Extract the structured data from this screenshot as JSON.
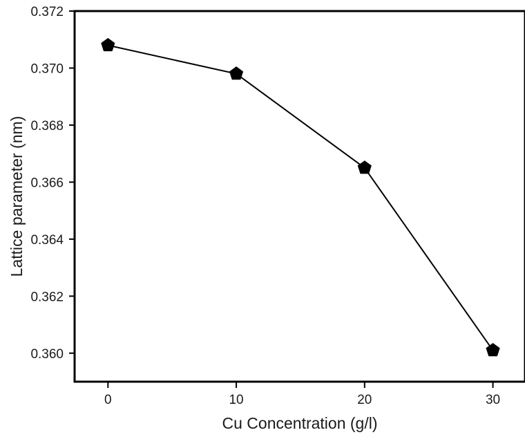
{
  "chart_data": {
    "type": "line",
    "title": "",
    "xlabel": "Cu Concentration (g/l)",
    "ylabel": "Lattice parameter (nm)",
    "x": [
      0,
      10,
      20,
      30
    ],
    "series": [
      {
        "values": [
          0.3708,
          0.3698,
          0.3665,
          0.3601
        ],
        "color": "#000000",
        "marker": "pentagon"
      }
    ],
    "xlim": [
      -2.6,
      32.5
    ],
    "ylim": [
      0.359,
      0.372
    ],
    "xticks": [
      0,
      10,
      20,
      30
    ],
    "xtick_labels": [
      "0",
      "10",
      "20",
      "30"
    ],
    "yticks": [
      0.36,
      0.362,
      0.364,
      0.366,
      0.368,
      0.37,
      0.372
    ],
    "ytick_labels": [
      "0.360",
      "0.362",
      "0.364",
      "0.366",
      "0.368",
      "0.370",
      "0.372"
    ],
    "grid": false,
    "legend": "none"
  }
}
